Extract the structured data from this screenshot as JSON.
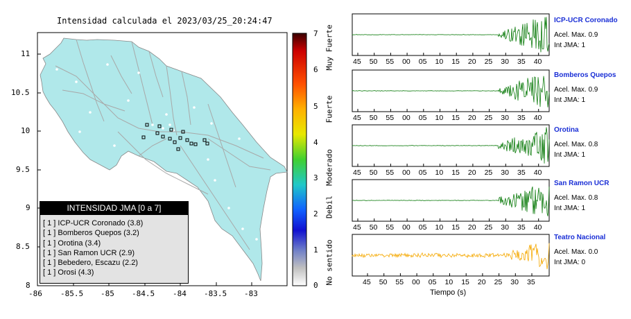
{
  "map": {
    "title": "Intensidad calculada el 2023/03/25_20:24:47",
    "x_ticks": [
      "-86",
      "-85.5",
      "-85",
      "-84.5",
      "-84",
      "-83.5",
      "-83"
    ],
    "y_ticks": [
      "11",
      "10.5",
      "10",
      "9.5",
      "9",
      "8.5",
      "8"
    ],
    "colorbar": {
      "ticks": [
        "7",
        "6",
        "5",
        "4",
        "3",
        "2",
        "1",
        "0"
      ],
      "categories": [
        "Muy Fuerte",
        "Fuerte",
        "Moderado",
        "Debil",
        "No sentido"
      ]
    }
  },
  "legend": {
    "title": "INTENSIDAD JMA [0 a 7]",
    "entries": [
      {
        "int": "[ 1 ]",
        "name": "ICP-UCR Coronado (3.8)"
      },
      {
        "int": "[ 1 ]",
        "name": "Bomberos Quepos (3.2)"
      },
      {
        "int": "[ 1 ]",
        "name": "Orotina (3.4)"
      },
      {
        "int": "[ 1 ]",
        "name": "San Ramon UCR (2.9)"
      },
      {
        "int": "[ 1 ]",
        "name": "Bebedero, Escazu (2.2)"
      },
      {
        "int": "[ 1 ]",
        "name": "Orosi (4.3)"
      }
    ]
  },
  "stations": [
    {
      "name": "ICP-UCR Coronado",
      "accel": "Acel. Max. 0.9",
      "jma": "Int JMA: 1",
      "color": "#0a7a0a",
      "ticks": [
        "45",
        "50",
        "55",
        "00",
        "05",
        "10",
        "15",
        "20",
        "25",
        "30",
        "35",
        "40"
      ]
    },
    {
      "name": "Bomberos Quepos",
      "accel": "Acel. Max. 0.9",
      "jma": "Int JMA: 1",
      "color": "#0a7a0a",
      "ticks": [
        "45",
        "50",
        "55",
        "00",
        "05",
        "10",
        "15",
        "20",
        "25",
        "30",
        "35",
        "40"
      ]
    },
    {
      "name": "Orotina",
      "accel": "Acel. Max. 0.8",
      "jma": "Int JMA: 1",
      "color": "#0a7a0a",
      "ticks": [
        "45",
        "50",
        "55",
        "00",
        "05",
        "10",
        "15",
        "20",
        "25",
        "30",
        "35",
        "40"
      ]
    },
    {
      "name": "San Ramon UCR",
      "accel": "Acel. Max. 0.8",
      "jma": "Int JMA: 1",
      "color": "#0a7a0a",
      "ticks": [
        "45",
        "50",
        "55",
        "00",
        "05",
        "10",
        "15",
        "20",
        "25",
        "30",
        "35",
        "40"
      ]
    },
    {
      "name": "Teatro Nacional",
      "accel": "Acel. Max. 0.0",
      "jma": "Int JMA: 0",
      "color": "#f5a800",
      "ticks": [
        "45",
        "50",
        "55",
        "00",
        "05",
        "10",
        "15",
        "20",
        "25",
        "30",
        "35"
      ]
    }
  ],
  "x_axis_label": "Tiempo (s)"
}
